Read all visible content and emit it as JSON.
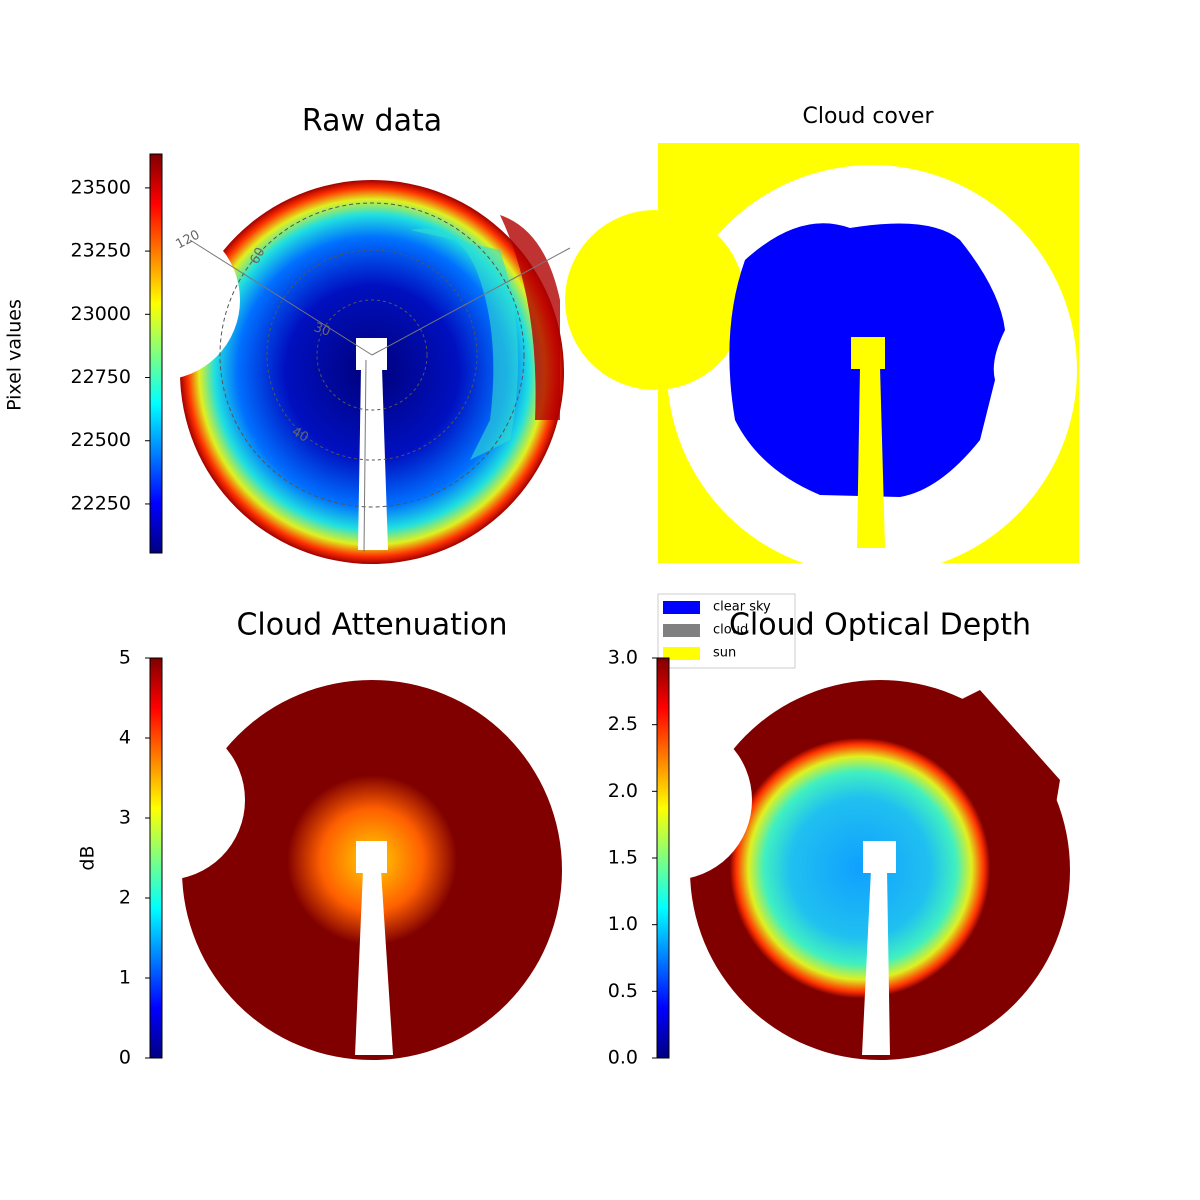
{
  "chart_data": [
    {
      "type": "image",
      "title": "Raw data",
      "colormap": "jet",
      "colorbar": {
        "label": "Pixel values",
        "ylim": [
          22056,
          23634
        ],
        "yticks": [
          22250,
          22500,
          22750,
          23000,
          23250,
          23500
        ]
      },
      "annotations": [
        "120",
        "60",
        "30",
        "40"
      ]
    },
    {
      "type": "image",
      "title": "Cloud cover",
      "series": [
        {
          "name": "clear sky",
          "color": "#0000ff"
        },
        {
          "name": "cloud",
          "color": "#808080"
        },
        {
          "name": "sun",
          "color": "#ffff00"
        }
      ]
    },
    {
      "type": "image",
      "title": "Cloud Attenuation",
      "colormap": "jet",
      "colorbar": {
        "label": "dB",
        "ylim": [
          0,
          5
        ],
        "yticks": [
          0,
          1,
          2,
          3,
          4,
          5
        ]
      }
    },
    {
      "type": "image",
      "title": "Cloud Optical Depth",
      "colormap": "jet",
      "colorbar": {
        "ylim": [
          0,
          3
        ],
        "yticks": [
          {
            "value": 0,
            "label": "0.0"
          },
          {
            "value": 0.5,
            "label": "0.5"
          },
          {
            "value": 1,
            "label": "1.0"
          },
          {
            "value": 1.5,
            "label": "1.5"
          },
          {
            "value": 2,
            "label": "2.0"
          },
          {
            "value": 2.5,
            "label": "2.5"
          },
          {
            "value": 3,
            "label": "3.0"
          }
        ]
      }
    }
  ]
}
